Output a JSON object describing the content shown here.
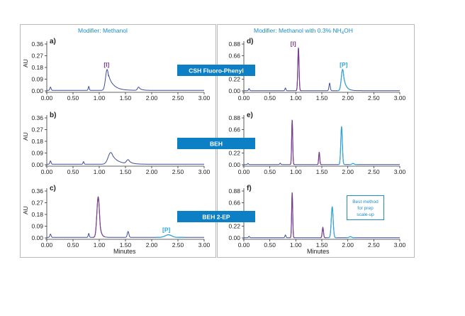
{
  "headers": {
    "left": "Modifier: Methanol",
    "right_main": "Modifier: Methanol with 0.3% NH",
    "right_sub": "4",
    "right_tail": "OH"
  },
  "column_bands": [
    "CSH Fluoro-Phenyl",
    "BEH",
    "BEH 2-EP"
  ],
  "y_axis_label": "AU",
  "x_axis_label": "Minutes",
  "note": [
    "Best method",
    "for prep",
    "scale-up"
  ],
  "colors": {
    "trace": "#3f4c96",
    "impurity": "#7a3d8f",
    "product": "#2fa6d8",
    "band": "#0d7fc4",
    "header": "#1f8ec4"
  },
  "chart_data": [
    {
      "type": "line",
      "panel": "a)",
      "side": "left",
      "row": 0,
      "xlim": [
        0.0,
        3.0
      ],
      "ylim": [
        0.0,
        0.36
      ],
      "x_ticks": [
        "0.00",
        "0.50",
        "1.00",
        "1.50",
        "2.00",
        "2.50",
        "3.00"
      ],
      "y_ticks": [
        "0.00",
        "0.09",
        "0.18",
        "0.27",
        "0.36"
      ],
      "peaks": [
        {
          "t": 0.07,
          "h": 0.025,
          "w": 0.012,
          "role": "base"
        },
        {
          "t": 0.8,
          "h": 0.03,
          "w": 0.01,
          "role": "base"
        },
        {
          "t": 1.15,
          "h": 0.16,
          "w": 0.03,
          "tail": 0.1,
          "role": "base"
        },
        {
          "t": 1.75,
          "h": 0.025,
          "w": 0.02,
          "tail": 0.05,
          "role": "base"
        }
      ],
      "labels": [
        {
          "text": "[I]",
          "t": 1.14,
          "y": 0.175,
          "role": "impurity"
        }
      ]
    },
    {
      "type": "line",
      "panel": "b)",
      "side": "left",
      "row": 1,
      "xlim": [
        0.0,
        3.0
      ],
      "ylim": [
        0.0,
        0.36
      ],
      "x_ticks": [
        "0.00",
        "0.50",
        "1.00",
        "1.50",
        "2.00",
        "2.50",
        "3.00"
      ],
      "y_ticks": [
        "0.00",
        "0.09",
        "0.18",
        "0.27",
        "0.36"
      ],
      "peaks": [
        {
          "t": 0.07,
          "h": 0.025,
          "w": 0.012,
          "role": "base"
        },
        {
          "t": 0.7,
          "h": 0.02,
          "w": 0.01,
          "role": "base"
        },
        {
          "t": 1.22,
          "h": 0.09,
          "w": 0.05,
          "tail": 0.12,
          "role": "base"
        },
        {
          "t": 1.55,
          "h": 0.03,
          "w": 0.03,
          "tail": 0.06,
          "role": "base"
        }
      ],
      "labels": []
    },
    {
      "type": "line",
      "panel": "c)",
      "side": "left",
      "row": 2,
      "xlim": [
        0.0,
        3.0
      ],
      "ylim": [
        0.0,
        0.36
      ],
      "x_ticks": [
        "0.00",
        "0.50",
        "1.00",
        "1.50",
        "2.00",
        "2.50",
        "3.00"
      ],
      "y_ticks": [
        "0.00",
        "0.09",
        "0.18",
        "0.27",
        "0.36"
      ],
      "peaks": [
        {
          "t": 0.07,
          "h": 0.025,
          "w": 0.012,
          "role": "base"
        },
        {
          "t": 0.8,
          "h": 0.03,
          "w": 0.01,
          "role": "base"
        },
        {
          "t": 0.98,
          "h": 0.31,
          "w": 0.025,
          "tail": 0.03,
          "role": "impurity"
        },
        {
          "t": 1.55,
          "h": 0.045,
          "w": 0.015,
          "role": "base"
        },
        {
          "t": 2.32,
          "h": 0.02,
          "w": 0.06,
          "role": "product"
        }
      ],
      "labels": [
        {
          "text": "[P]",
          "t": 2.28,
          "y": 0.035,
          "role": "product"
        }
      ]
    },
    {
      "type": "line",
      "panel": "d)",
      "side": "right",
      "row": 0,
      "xlim": [
        0.0,
        3.0
      ],
      "ylim": [
        0.0,
        0.88
      ],
      "x_ticks": [
        "0.00",
        "0.50",
        "1.00",
        "1.50",
        "2.00",
        "2.50",
        "3.00"
      ],
      "y_ticks": [
        "0.00",
        "0.22",
        "0.44",
        "0.66",
        "0.88"
      ],
      "peaks": [
        {
          "t": 0.1,
          "h": 0.04,
          "w": 0.01,
          "role": "base"
        },
        {
          "t": 0.8,
          "h": 0.05,
          "w": 0.01,
          "role": "base"
        },
        {
          "t": 1.05,
          "h": 0.8,
          "w": 0.012,
          "role": "impurity"
        },
        {
          "t": 1.65,
          "h": 0.14,
          "w": 0.012,
          "role": "base"
        },
        {
          "t": 1.9,
          "h": 0.4,
          "w": 0.025,
          "tail": 0.05,
          "role": "product"
        }
      ],
      "labels": [
        {
          "text": "[I]",
          "t": 0.95,
          "y": 0.82,
          "role": "impurity"
        },
        {
          "text": "[P]",
          "t": 1.92,
          "y": 0.43,
          "role": "product"
        }
      ]
    },
    {
      "type": "line",
      "panel": "e)",
      "side": "right",
      "row": 1,
      "xlim": [
        0.0,
        3.0
      ],
      "ylim": [
        0.0,
        0.88
      ],
      "x_ticks": [
        "0.00",
        "0.50",
        "1.00",
        "1.50",
        "2.00",
        "2.50",
        "3.00"
      ],
      "y_ticks": [
        "0.00",
        "0.22",
        "0.44",
        "0.66",
        "0.88"
      ],
      "peaks": [
        {
          "t": 0.08,
          "h": 0.02,
          "w": 0.01,
          "role": "base"
        },
        {
          "t": 0.7,
          "h": 0.025,
          "w": 0.01,
          "role": "base"
        },
        {
          "t": 0.93,
          "h": 0.83,
          "w": 0.01,
          "role": "impurity"
        },
        {
          "t": 1.45,
          "h": 0.23,
          "w": 0.01,
          "role": "impurity"
        },
        {
          "t": 1.88,
          "h": 0.71,
          "w": 0.015,
          "role": "product"
        },
        {
          "t": 2.1,
          "h": 0.02,
          "w": 0.02,
          "role": "product"
        }
      ],
      "labels": []
    },
    {
      "type": "line",
      "panel": "f)",
      "side": "right",
      "row": 2,
      "xlim": [
        0.0,
        3.0
      ],
      "ylim": [
        0.0,
        0.88
      ],
      "x_ticks": [
        "0.00",
        "0.50",
        "1.00",
        "1.50",
        "2.00",
        "2.50",
        "3.00"
      ],
      "y_ticks": [
        "0.00",
        "0.22",
        "0.44",
        "0.66",
        "0.88"
      ],
      "peaks": [
        {
          "t": 0.1,
          "h": 0.025,
          "w": 0.01,
          "role": "base"
        },
        {
          "t": 0.8,
          "h": 0.05,
          "w": 0.01,
          "role": "base"
        },
        {
          "t": 0.93,
          "h": 0.84,
          "w": 0.01,
          "role": "impurity"
        },
        {
          "t": 1.52,
          "h": 0.19,
          "w": 0.012,
          "role": "impurity"
        },
        {
          "t": 1.7,
          "h": 0.58,
          "w": 0.018,
          "role": "product"
        },
        {
          "t": 2.05,
          "h": 0.02,
          "w": 0.02,
          "role": "product"
        }
      ],
      "labels": []
    }
  ]
}
